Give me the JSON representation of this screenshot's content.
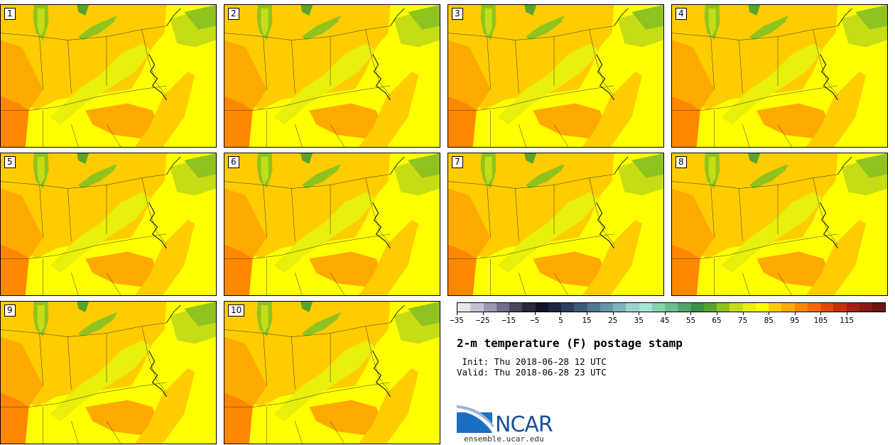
{
  "panels": [
    {
      "label": "1"
    },
    {
      "label": "2"
    },
    {
      "label": "3"
    },
    {
      "label": "4"
    },
    {
      "label": "5"
    },
    {
      "label": "6"
    },
    {
      "label": "7"
    },
    {
      "label": "8"
    },
    {
      "label": "9"
    },
    {
      "label": "10"
    }
  ],
  "colorbar": {
    "colors": [
      "#e6e6ef",
      "#c3c3d6",
      "#9a9ab4",
      "#6e6e8c",
      "#46465f",
      "#27273d",
      "#111128",
      "#1b2540",
      "#2c3f5e",
      "#3d5a77",
      "#4f7890",
      "#6496a6",
      "#7fb5bd",
      "#9ad3cf",
      "#a6e6da",
      "#86d4ae",
      "#6cc08e",
      "#4ea86c",
      "#3a9044",
      "#57a52d",
      "#8fc31f",
      "#c6dd16",
      "#e8ef0a",
      "#ffff00",
      "#ffcc00",
      "#ffaa00",
      "#ff8800",
      "#f56a00",
      "#e34a00",
      "#c92e0a",
      "#a81e10",
      "#8c1a12",
      "#6d1410"
    ],
    "tick_labels": [
      "−35",
      "−25",
      "−15",
      "−5",
      "5",
      "15",
      "25",
      "35",
      "45",
      "55",
      "65",
      "75",
      "85",
      "95",
      "105",
      "115"
    ]
  },
  "title": "2-m temperature (F) postage stamp",
  "init_line": " Init: Thu 2018-06-28 12 UTC",
  "valid_line": "Valid: Thu 2018-06-28 23 UTC",
  "logo": {
    "text": "NCAR",
    "site": "ensemble.ucar.edu"
  }
}
